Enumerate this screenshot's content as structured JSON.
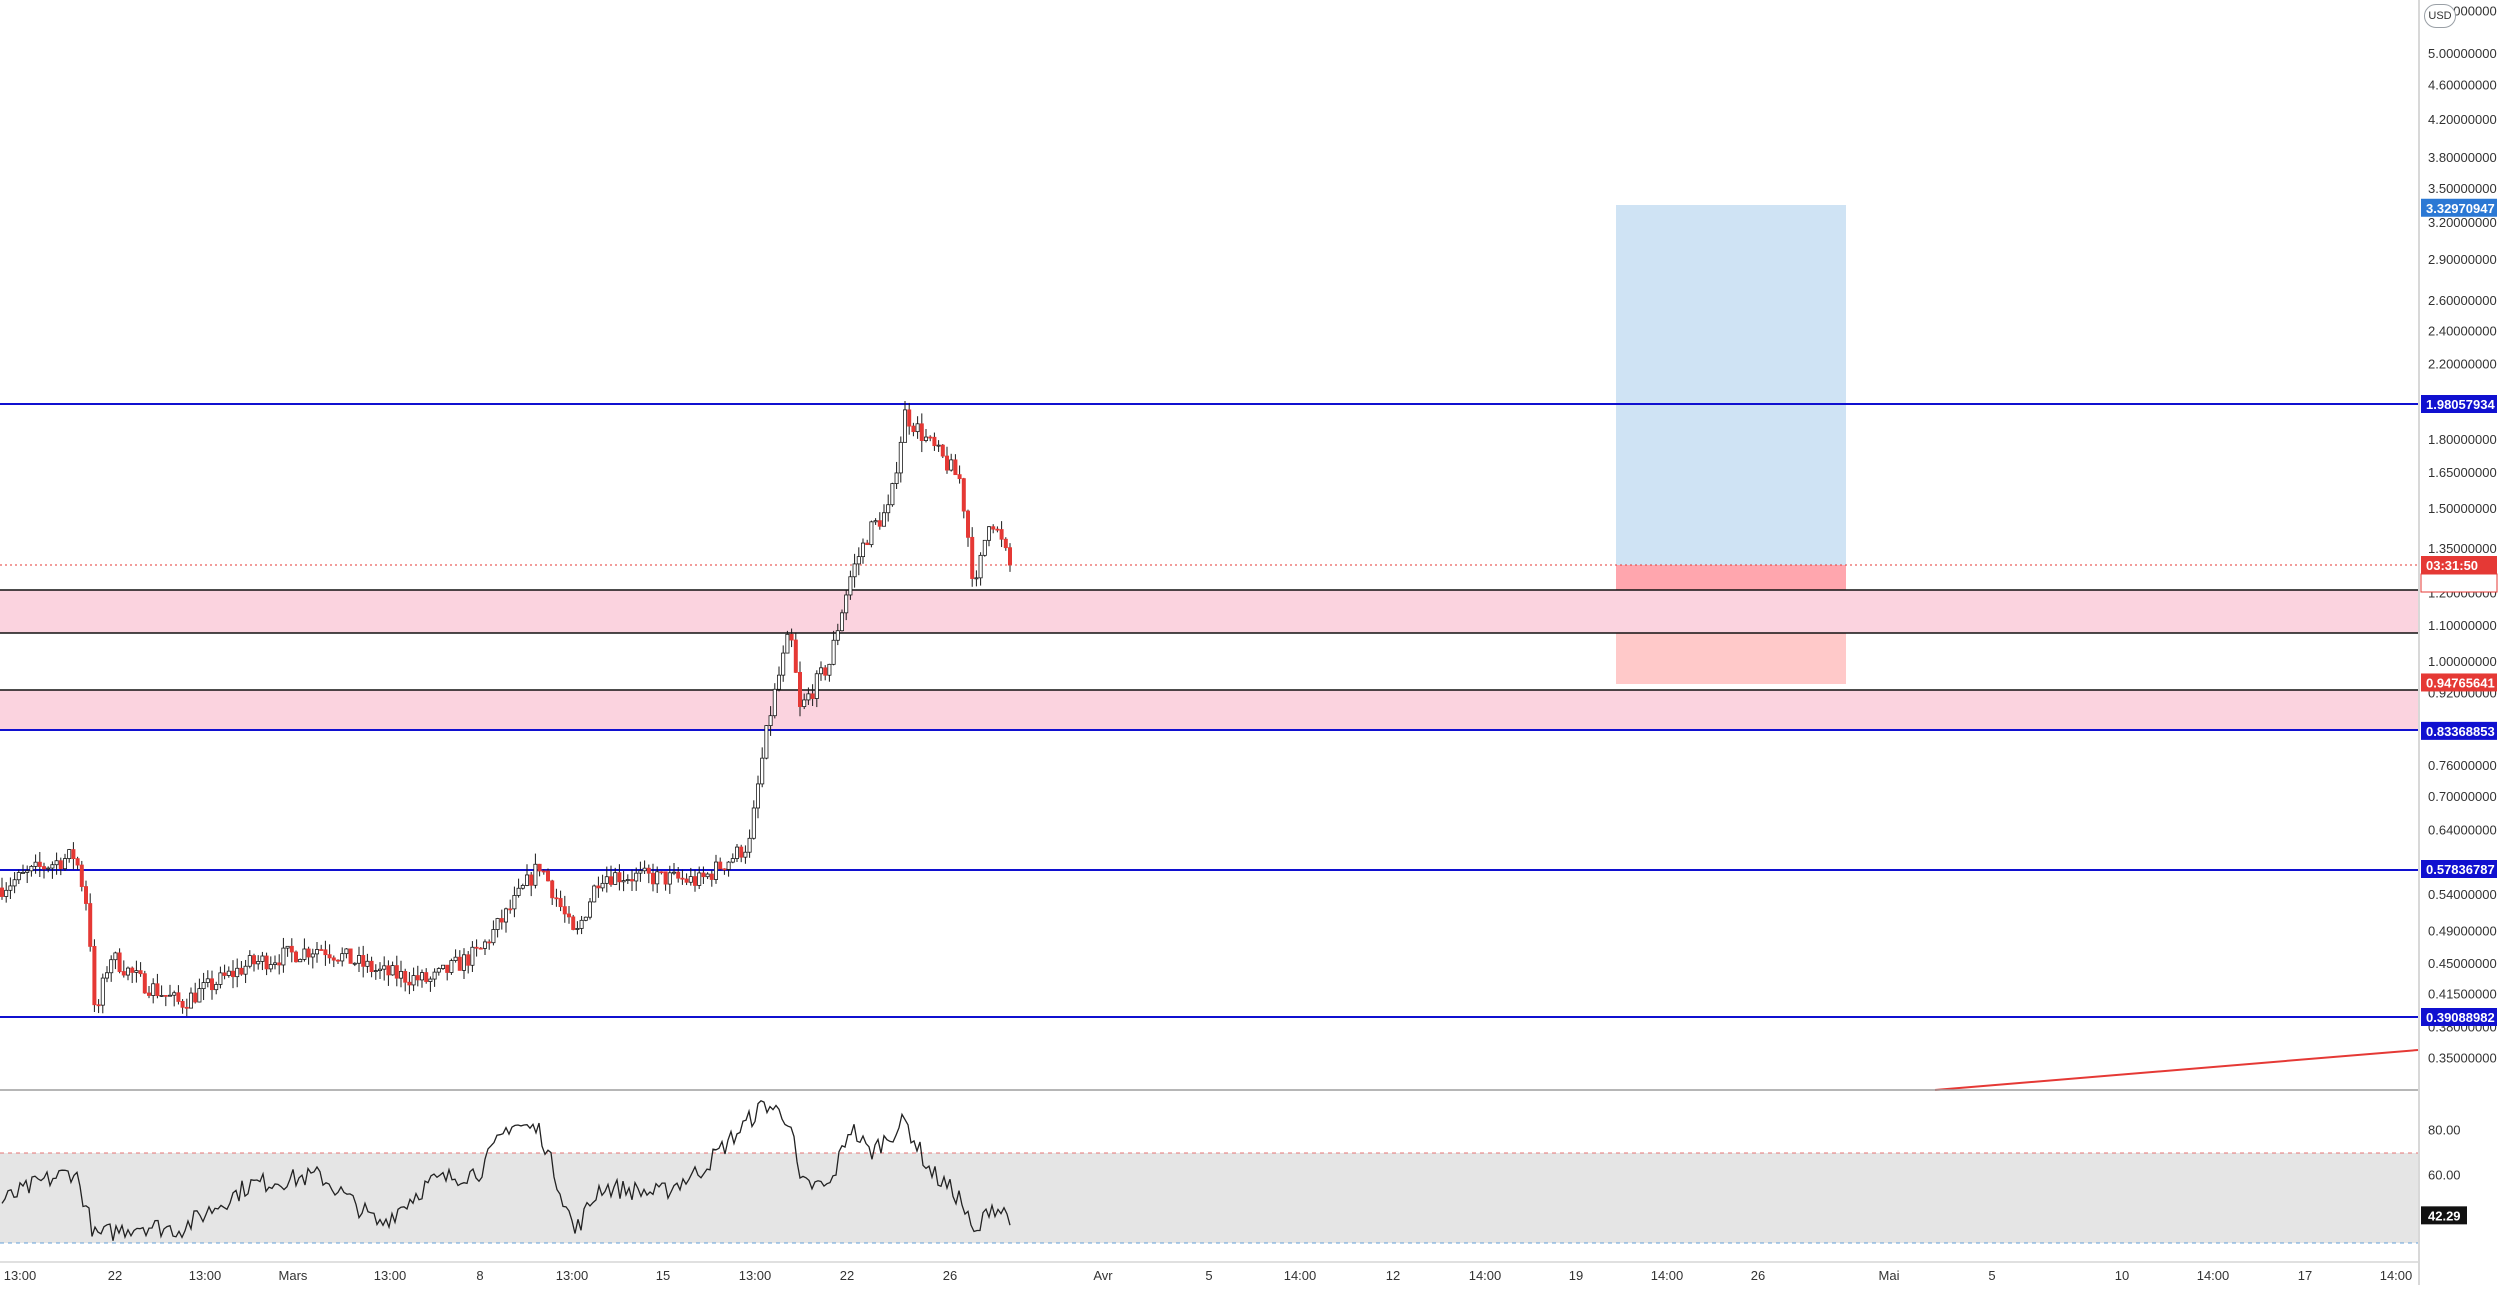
{
  "currency": "USD",
  "colors": {
    "up": "#ffffff",
    "down": "#e53935",
    "wick": "#1a1a1a",
    "hline": "#1010d0",
    "zone": "#fbd3df",
    "target": "#cfe3f4",
    "stop": "#ffc9c9",
    "stop_strong": "#ffa6ae",
    "rsi_band": "#e5e5e5",
    "rsi_line": "#222222",
    "current_tag": "#e53935"
  },
  "price_axis": {
    "labels": [
      "5.60000000",
      "5.00000000",
      "4.60000000",
      "4.20000000",
      "3.80000000",
      "3.50000000",
      "3.20000000",
      "2.90000000",
      "2.60000000",
      "2.40000000",
      "2.20000000",
      "2.00000000",
      "1.80000000",
      "1.65000000",
      "1.50000000",
      "1.35000000",
      "1.20000000",
      "1.10000000",
      "1.00000000",
      "0.92000000",
      "0.84000000",
      "0.76000000",
      "0.70000000",
      "0.64000000",
      "0.58000000",
      "0.54000000",
      "0.49000000",
      "0.45000000",
      "0.41500000",
      "0.38000000",
      "0.35000000"
    ]
  },
  "price_tags": {
    "target": "3.32970947",
    "resistance": "1.98057934",
    "countdown": "03:31:50",
    "current": "1.29283229",
    "stop": "0.94765641",
    "support_mid": "0.83368853",
    "support_low": "0.57836787",
    "support_bottom": "0.39088982"
  },
  "rsi": {
    "labels": [
      "80.00",
      "60.00"
    ],
    "current": "42.29"
  },
  "time_axis": {
    "labels": [
      "13:00",
      "22",
      "13:00",
      "Mars",
      "13:00",
      "8",
      "13:00",
      "15",
      "13:00",
      "22",
      "26",
      "Avr",
      "5",
      "14:00",
      "12",
      "14:00",
      "19",
      "14:00",
      "26",
      "Mai",
      "5",
      "10",
      "14:00",
      "17",
      "14:00"
    ]
  },
  "chart_data": {
    "type": "candlestick",
    "title": "",
    "scale": "log",
    "x_range": [
      "Feb",
      "May"
    ],
    "y_range": [
      0.35,
      5.6
    ],
    "grid": false,
    "horizontal_levels": [
      1.98057934,
      1.2,
      1.08,
      0.935,
      0.83368853,
      0.57836787,
      0.39088982
    ],
    "support_zones": [
      [
        1.08,
        1.2
      ],
      [
        0.83368853,
        0.935
      ]
    ],
    "long_position": {
      "entry": 1.29283229,
      "target": 3.32970947,
      "stop": 0.94765641
    },
    "current_price": 1.29283229,
    "rsi_current": 42.29,
    "rsi_levels": [
      70,
      30
    ],
    "price_path": [
      [
        0,
        0.55
      ],
      [
        40,
        0.58
      ],
      [
        75,
        0.6
      ],
      [
        88,
        0.52
      ],
      [
        95,
        0.385
      ],
      [
        110,
        0.46
      ],
      [
        140,
        0.43
      ],
      [
        180,
        0.405
      ],
      [
        250,
        0.45
      ],
      [
        320,
        0.47
      ],
      [
        380,
        0.44
      ],
      [
        430,
        0.43
      ],
      [
        480,
        0.465
      ],
      [
        510,
        0.52
      ],
      [
        540,
        0.585
      ],
      [
        575,
        0.48
      ],
      [
        600,
        0.57
      ],
      [
        660,
        0.565
      ],
      [
        700,
        0.56
      ],
      [
        735,
        0.6
      ],
      [
        750,
        0.62
      ],
      [
        770,
        0.87
      ],
      [
        790,
        1.08
      ],
      [
        800,
        0.88
      ],
      [
        830,
        1.0
      ],
      [
        850,
        1.25
      ],
      [
        870,
        1.42
      ],
      [
        890,
        1.5
      ],
      [
        905,
        1.93
      ],
      [
        930,
        1.78
      ],
      [
        960,
        1.62
      ],
      [
        975,
        1.2
      ],
      [
        990,
        1.48
      ],
      [
        1010,
        1.29
      ]
    ],
    "rsi_path": [
      [
        0,
        48
      ],
      [
        40,
        57
      ],
      [
        75,
        62
      ],
      [
        95,
        33
      ],
      [
        140,
        38
      ],
      [
        180,
        36
      ],
      [
        250,
        56
      ],
      [
        320,
        60
      ],
      [
        380,
        38
      ],
      [
        430,
        57
      ],
      [
        480,
        62
      ],
      [
        510,
        83
      ],
      [
        540,
        80
      ],
      [
        575,
        35
      ],
      [
        600,
        55
      ],
      [
        660,
        52
      ],
      [
        700,
        62
      ],
      [
        735,
        78
      ],
      [
        765,
        92
      ],
      [
        790,
        85
      ],
      [
        800,
        56
      ],
      [
        830,
        55
      ],
      [
        850,
        82
      ],
      [
        870,
        70
      ],
      [
        905,
        84
      ],
      [
        930,
        62
      ],
      [
        960,
        50
      ],
      [
        975,
        32
      ],
      [
        990,
        47
      ],
      [
        1010,
        42.29
      ]
    ]
  }
}
